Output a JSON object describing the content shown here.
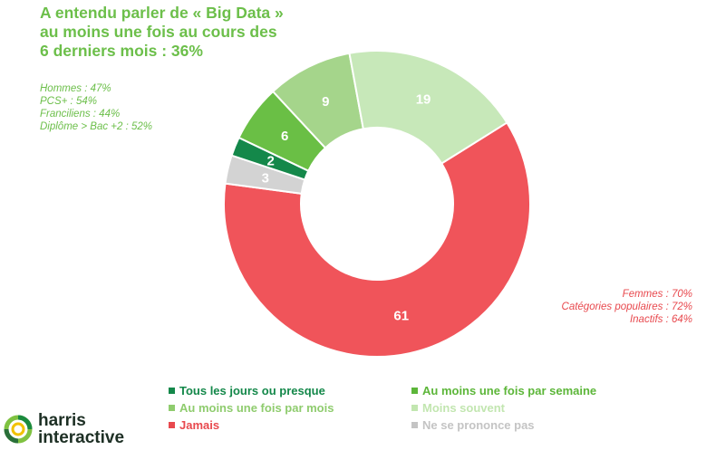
{
  "title_lines": [
    "A entendu parler de « Big Data »",
    "au moins une fois au cours des",
    "6 derniers mois : 36%"
  ],
  "notes_left": [
    "Hommes : 47%",
    "PCS+ : 54%",
    "Franciliens : 44%",
    "Diplôme > Bac +2 : 52%"
  ],
  "notes_right": [
    "Femmes : 70%",
    "Catégories populaires : 72%",
    "Inactifs : 64%"
  ],
  "brand": {
    "line1": "harris",
    "line2": "interactive"
  },
  "chart_data": {
    "type": "pie",
    "donut": true,
    "slices": [
      {
        "label": "Jamais",
        "value": 61,
        "color": "#f0545a"
      },
      {
        "label": "Ne se prononce pas",
        "value": 3,
        "color": "#d3d3d3"
      },
      {
        "label": "Tous les jours ou presque",
        "value": 2,
        "color": "#14884a"
      },
      {
        "label": "Au moins une fois par semaine",
        "value": 6,
        "color": "#6abf45"
      },
      {
        "label": "Au moins une fois par mois",
        "value": 9,
        "color": "#a5d58b"
      },
      {
        "label": "Moins souvent",
        "value": 19,
        "color": "#c7e8b9"
      }
    ],
    "legend": [
      {
        "label": "Tous les jours ou presque",
        "color": "#14884a"
      },
      {
        "label": "Au moins une fois par semaine",
        "color": "#5cb639"
      },
      {
        "label": "Au moins une fois par mois",
        "color": "#8fcc6e"
      },
      {
        "label": "Moins souvent",
        "color": "#c2e6b0"
      },
      {
        "label": "Jamais",
        "color": "#e8494e"
      },
      {
        "label": "Ne se prononce pas",
        "color": "#c4c4c4"
      }
    ]
  }
}
